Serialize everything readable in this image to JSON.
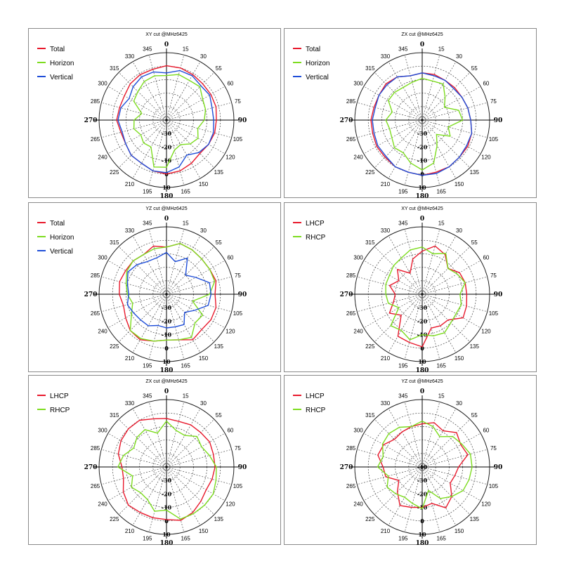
{
  "chart_data": [
    {
      "type": "polar-line",
      "title": "XY cut @MHz6425",
      "angle_labels": [
        "0",
        "15",
        "30",
        "55",
        "60",
        "75",
        "90",
        "105",
        "120",
        "135",
        "150",
        "165",
        "180",
        "195",
        "210",
        "225",
        "240",
        "265",
        "270",
        "285",
        "300",
        "315",
        "330",
        "345"
      ],
      "radial_labels": [
        "-30",
        "-20",
        "-10",
        "0",
        "10"
      ],
      "rlim": [
        -40,
        10
      ],
      "series": [
        {
          "name": "Total",
          "color": "#e8192c",
          "values": [
            0.3,
            0,
            -1,
            -2,
            -2,
            -2,
            -3,
            -3,
            -4,
            -5,
            -3,
            -1,
            0,
            -1,
            -3,
            -3,
            -5,
            -5,
            -3,
            -4,
            -4,
            -2,
            -1,
            -1
          ]
        },
        {
          "name": "Horizon",
          "color": "#7ddc1f",
          "values": [
            -7,
            -5,
            -6,
            -5,
            -9,
            -10,
            -12,
            -16,
            -13,
            -15,
            -19,
            -17,
            -5,
            -4,
            -17,
            -16,
            -18,
            -15,
            -16,
            -21,
            -12,
            -10,
            -7,
            -6
          ]
        },
        {
          "name": "Vertical",
          "color": "#1f4ed8",
          "values": [
            -5,
            -2,
            -2,
            -4,
            -3,
            -5,
            -5,
            -4,
            -4,
            -6,
            -10,
            -4,
            -1,
            -1,
            -3,
            -3,
            -5,
            -6,
            -4,
            -5,
            -8,
            -5,
            -3,
            -3
          ]
        }
      ]
    },
    {
      "type": "polar-line",
      "title": "ZX cut @MHz6425",
      "angle_labels": [
        "0",
        "15",
        "30",
        "55",
        "60",
        "75",
        "90",
        "105",
        "120",
        "135",
        "150",
        "165",
        "180",
        "195",
        "210",
        "225",
        "240",
        "265",
        "270",
        "285",
        "300",
        "315",
        "330",
        "345"
      ],
      "radial_labels": [
        "-30",
        "-20",
        "-10",
        "0",
        "10"
      ],
      "rlim": [
        -40,
        10
      ],
      "series": [
        {
          "name": "Total",
          "color": "#e8192c",
          "values": [
            -5,
            -5,
            -6,
            -6,
            -6,
            -5,
            -4,
            -2,
            -1,
            -1,
            0,
            0,
            1,
            0,
            0,
            -1,
            -1,
            -2,
            -2,
            -3,
            -3,
            -2,
            -3,
            -6
          ]
        },
        {
          "name": "Horizon",
          "color": "#7ddc1f",
          "values": [
            -9,
            -10,
            -9,
            -16,
            -21,
            -12,
            -10,
            -20,
            -16,
            -25,
            -18,
            -7,
            -3,
            -7,
            -12,
            -11,
            -14,
            -15,
            -13,
            -17,
            -11,
            -11,
            -12,
            -11
          ]
        },
        {
          "name": "Vertical",
          "color": "#1f4ed8",
          "values": [
            -5,
            -6,
            -6,
            -7,
            -6,
            -5,
            -4,
            -2,
            -2,
            -1,
            0,
            1,
            1,
            0,
            0,
            -2,
            -2,
            -3,
            -3,
            -4,
            -3,
            -3,
            -3,
            -6
          ]
        }
      ]
    },
    {
      "type": "polar-line",
      "title": "YZ cut @MHz6425",
      "angle_labels": [
        "0",
        "15",
        "30",
        "55",
        "60",
        "75",
        "90",
        "105",
        "120",
        "135",
        "150",
        "165",
        "180",
        "195",
        "210",
        "225",
        "240",
        "265",
        "270",
        "285",
        "300",
        "315",
        "330",
        "345"
      ],
      "radial_labels": [
        "-30",
        "-20",
        "-10",
        "0",
        "10"
      ],
      "rlim": [
        -40,
        10
      ],
      "series": [
        {
          "name": "Total",
          "color": "#e8192c",
          "values": [
            -5,
            -1,
            -2,
            -3,
            -3,
            -2,
            -4,
            -2,
            -2,
            -3,
            -1,
            -5,
            -6,
            -4,
            -1,
            -2,
            -5,
            -7,
            -5,
            -4,
            -5,
            -5,
            -6,
            -3
          ]
        },
        {
          "name": "Horizon",
          "color": "#7ddc1f",
          "values": [
            -5,
            -1,
            -2,
            -3,
            -3,
            -3,
            -8,
            -20,
            -9,
            -10,
            -3,
            -5,
            -6,
            -4,
            -2,
            -2,
            -10,
            -14,
            -11,
            -9,
            -6,
            -5,
            -6,
            -5
          ]
        },
        {
          "name": "Vertical",
          "color": "#1f4ed8",
          "values": [
            -9,
            -15,
            -9,
            -20,
            -15,
            -7,
            -7,
            -8,
            -16,
            -21,
            -14,
            -15,
            -15,
            -16,
            -13,
            -13,
            -12,
            -10,
            -12,
            -10,
            -7,
            -9,
            -12,
            -12
          ]
        }
      ]
    },
    {
      "type": "polar-line",
      "title": "XY cut @MHz6425",
      "angle_labels": [
        "0",
        "15",
        "30",
        "55",
        "60",
        "75",
        "90",
        "105",
        "120",
        "135",
        "150",
        "165",
        "180",
        "195",
        "210",
        "225",
        "240",
        "265",
        "270",
        "285",
        "300",
        "315",
        "330",
        "345"
      ],
      "radial_labels": [
        "-30",
        "-20",
        "-10",
        "0",
        "10"
      ],
      "rlim": [
        -40,
        10
      ],
      "series": [
        {
          "name": "LHCP",
          "color": "#e8192c",
          "values": [
            -8,
            -3,
            -6,
            -13,
            -8,
            -7,
            -7,
            -6,
            -5,
            -13,
            -13,
            -14,
            -1,
            -3,
            -4,
            -18,
            -12,
            -18,
            -20,
            -15,
            -20,
            -14,
            -22,
            -13
          ]
        },
        {
          "name": "RHCP",
          "color": "#7ddc1f",
          "values": [
            -5,
            -9,
            -5,
            -13,
            -10,
            -7,
            -12,
            -10,
            -11,
            -10,
            -7,
            -8,
            -10,
            -5,
            -9,
            -7,
            -20,
            -14,
            -13,
            -12,
            -12,
            -10,
            -9,
            -6
          ]
        }
      ]
    },
    {
      "type": "polar-line",
      "title": "ZX cut @MHz6425",
      "angle_labels": [
        "0",
        "15",
        "30",
        "55",
        "60",
        "75",
        "90",
        "105",
        "120",
        "135",
        "150",
        "165",
        "180",
        "195",
        "210",
        "225",
        "240",
        "265",
        "270",
        "285",
        "300",
        "315",
        "330",
        "345"
      ],
      "radial_labels": [
        "-30",
        "-20",
        "-10",
        "0",
        "10"
      ],
      "rlim": [
        -40,
        10
      ],
      "series": [
        {
          "name": "LHCP",
          "color": "#e8192c",
          "values": [
            -4,
            -5,
            -4,
            -4,
            -3,
            -4,
            -4,
            -5,
            -6,
            -4,
            -1,
            1,
            -1,
            -1,
            -1,
            0,
            -3,
            -7,
            -7,
            -3,
            -1,
            0,
            0,
            -3
          ]
        },
        {
          "name": "RHCP",
          "color": "#7ddc1f",
          "values": [
            -6,
            -12,
            -13,
            -8,
            -10,
            -7,
            -3,
            -2,
            0,
            0,
            0,
            0,
            -8,
            -6,
            -12,
            -13,
            -10,
            -14,
            -4,
            -7,
            -12,
            -9,
            -8,
            -14
          ]
        }
      ]
    },
    {
      "type": "polar-line",
      "title": "YZ cut @MHz6425",
      "angle_labels": [
        "0",
        "15",
        "30",
        "55",
        "60",
        "75",
        "90",
        "105",
        "120",
        "135",
        "150",
        "165",
        "180",
        "195",
        "210",
        "225",
        "240",
        "265",
        "270",
        "285",
        "300",
        "315",
        "330",
        "345"
      ],
      "radial_labels": [
        "-40",
        "-30",
        "-20",
        "-10",
        "0",
        "10"
      ],
      "rlim": [
        -40,
        10
      ],
      "series": [
        {
          "name": "LHCP",
          "color": "#e8192c",
          "values": [
            -8,
            -6,
            -9,
            -4,
            -7,
            -5,
            -13,
            -15,
            -16,
            -9,
            -5,
            -12,
            -10,
            -9,
            -7,
            -14,
            -20,
            -12,
            -11,
            -6,
            -7,
            -11,
            -10,
            -9
          ]
        },
        {
          "name": "RHCP",
          "color": "#7ddc1f",
          "values": [
            -6,
            -9,
            -14,
            -8,
            -6,
            -3,
            -3,
            -4,
            -5,
            -9,
            -13,
            -22,
            -9,
            -12,
            -14,
            -12,
            -10,
            -14,
            -7,
            -10,
            -6,
            -5,
            -6,
            -9
          ]
        }
      ]
    }
  ]
}
